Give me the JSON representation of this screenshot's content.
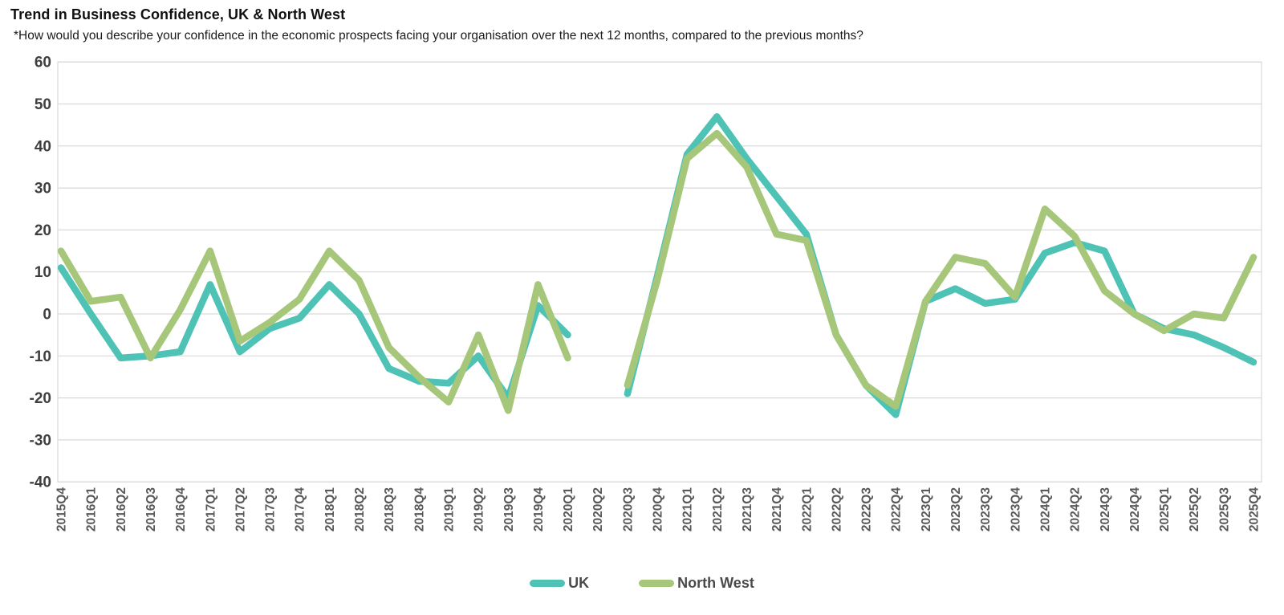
{
  "header": {
    "title": "Trend in Business Confidence, UK & North West",
    "subtitle": "*How would you describe your confidence in the economic prospects facing your organisation over the next 12 months, compared to the previous months?"
  },
  "chart_data": {
    "type": "line",
    "title": "Trend in Business Confidence, UK & North West",
    "xlabel": "",
    "ylabel": "",
    "ylim": [
      -40,
      60
    ],
    "yticks": [
      60,
      50,
      40,
      30,
      20,
      10,
      0,
      -10,
      -20,
      -30,
      -40
    ],
    "grid": "horizontal",
    "legend_position": "bottom",
    "gap_note": "no data at 2020Q2",
    "categories": [
      "2015Q4",
      "2016Q1",
      "2016Q2",
      "2016Q3",
      "2016Q4",
      "2017Q1",
      "2017Q2",
      "2017Q3",
      "2017Q4",
      "2018Q1",
      "2018Q2",
      "2018Q3",
      "2018Q4",
      "2019Q1",
      "2019Q2",
      "2019Q3",
      "2019Q4",
      "2020Q1",
      "2020Q2",
      "2020Q3",
      "2020Q4",
      "2021Q1",
      "2021Q2",
      "2021Q3",
      "2021Q4",
      "2022Q1",
      "2022Q2",
      "2022Q3",
      "2022Q4",
      "2023Q1",
      "2023Q2",
      "2023Q3",
      "2023Q4",
      "2024Q1",
      "2024Q2",
      "2024Q3",
      "2024Q4",
      "2025Q1",
      "2025Q2",
      "2025Q3",
      "2025Q4"
    ],
    "series": [
      {
        "name": "UK",
        "color": "#4ec3b5",
        "values": [
          11,
          0,
          -10.5,
          -10,
          -9,
          7,
          -9,
          -3.5,
          -1,
          7,
          0,
          -13,
          -16,
          -16.5,
          -10,
          -20,
          2,
          -5,
          null,
          -19,
          9,
          38,
          47,
          37,
          28,
          19,
          -5,
          -17,
          -24,
          3,
          6,
          2.5,
          3.5,
          14.5,
          17,
          15,
          0,
          -3.5,
          -5,
          -8,
          -11.5
        ]
      },
      {
        "name": "North West",
        "color": "#a6c779",
        "values": [
          15,
          3,
          4,
          -10.5,
          1,
          15,
          -6.5,
          -2,
          3.5,
          15,
          8,
          -8,
          -15,
          -21,
          -5,
          -23,
          7,
          -10.5,
          null,
          -17,
          8,
          37,
          43,
          35,
          19,
          17.5,
          -5,
          -17,
          -22,
          3,
          13.5,
          12,
          4,
          25,
          18.5,
          5.5,
          0,
          -4,
          0,
          -1,
          13.5
        ]
      }
    ],
    "style": {
      "gridline_color": "#d9d9d9",
      "plot_border_color": "#d9d9d9",
      "y_tick_label_color": "#3f3f3f",
      "x_tick_label_color": "#595959",
      "background": "#ffffff"
    }
  }
}
